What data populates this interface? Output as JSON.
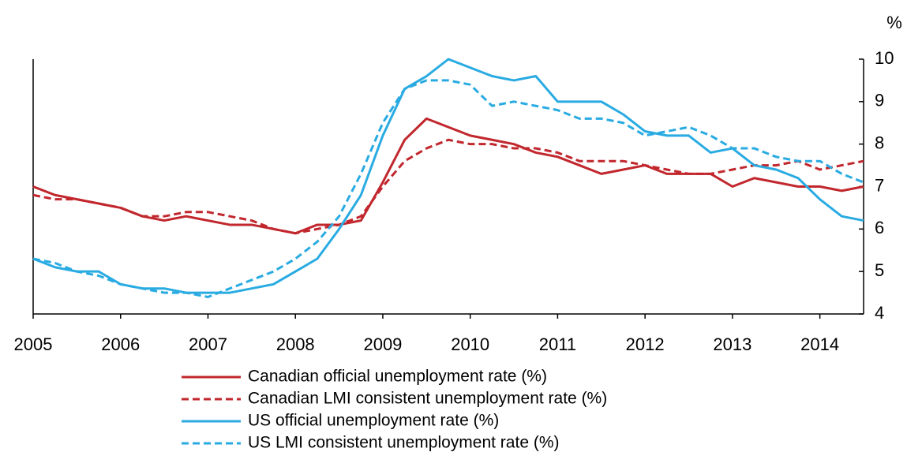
{
  "chart_data": {
    "type": "line",
    "y_unit": "%",
    "x": [
      2005,
      2005.25,
      2005.5,
      2005.75,
      2006,
      2006.25,
      2006.5,
      2006.75,
      2007,
      2007.25,
      2007.5,
      2007.75,
      2008,
      2008.25,
      2008.5,
      2008.75,
      2009,
      2009.25,
      2009.5,
      2009.75,
      2010,
      2010.25,
      2010.5,
      2010.75,
      2011,
      2011.25,
      2011.5,
      2011.75,
      2012,
      2012.25,
      2012.5,
      2012.75,
      2013,
      2013.25,
      2013.5,
      2013.75,
      2014,
      2014.25,
      2014.5
    ],
    "xlim": [
      2005,
      2014.5
    ],
    "xticks": [
      2005,
      2006,
      2007,
      2008,
      2009,
      2010,
      2011,
      2012,
      2013,
      2014
    ],
    "ylim": [
      4,
      10
    ],
    "yticks": [
      4,
      5,
      6,
      7,
      8,
      9,
      10
    ],
    "series": [
      {
        "name": "Canadian official unemployment rate (%)",
        "color": "#c1272d",
        "dash": false,
        "values": [
          7.0,
          6.8,
          6.7,
          6.6,
          6.5,
          6.3,
          6.2,
          6.3,
          6.2,
          6.1,
          6.1,
          6.0,
          5.9,
          6.1,
          6.1,
          6.2,
          7.1,
          8.1,
          8.6,
          8.4,
          8.2,
          8.1,
          8.0,
          7.8,
          7.7,
          7.5,
          7.3,
          7.4,
          7.5,
          7.3,
          7.3,
          7.3,
          7.0,
          7.2,
          7.1,
          7.0,
          7.0,
          6.9,
          7.0
        ]
      },
      {
        "name": "Canadian LMI consistent unemployment rate (%)",
        "color": "#c1272d",
        "dash": true,
        "values": [
          6.8,
          6.7,
          6.7,
          6.6,
          6.5,
          6.3,
          6.3,
          6.4,
          6.4,
          6.3,
          6.2,
          6.0,
          5.9,
          6.0,
          6.1,
          6.3,
          7.0,
          7.6,
          7.9,
          8.1,
          8.0,
          8.0,
          7.9,
          7.9,
          7.8,
          7.6,
          7.6,
          7.6,
          7.5,
          7.4,
          7.3,
          7.3,
          7.4,
          7.5,
          7.5,
          7.6,
          7.4,
          7.5,
          7.6
        ]
      },
      {
        "name": "US official unemployment rate (%)",
        "color": "#29abe2",
        "dash": false,
        "values": [
          5.3,
          5.1,
          5.0,
          5.0,
          4.7,
          4.6,
          4.6,
          4.5,
          4.5,
          4.5,
          4.6,
          4.7,
          5.0,
          5.3,
          6.0,
          6.8,
          8.2,
          9.3,
          9.6,
          10.0,
          9.8,
          9.6,
          9.5,
          9.6,
          9.0,
          9.0,
          9.0,
          8.7,
          8.3,
          8.2,
          8.2,
          7.8,
          7.9,
          7.5,
          7.4,
          7.2,
          6.7,
          6.3,
          6.2
        ]
      },
      {
        "name": "US LMI consistent unemployment rate (%)",
        "color": "#29abe2",
        "dash": true,
        "values": [
          5.3,
          5.2,
          5.0,
          4.9,
          4.7,
          4.6,
          4.5,
          4.5,
          4.4,
          4.6,
          4.8,
          5.0,
          5.3,
          5.7,
          6.3,
          7.3,
          8.5,
          9.3,
          9.5,
          9.5,
          9.4,
          8.9,
          9.0,
          8.9,
          8.8,
          8.6,
          8.6,
          8.5,
          8.2,
          8.3,
          8.4,
          8.2,
          7.9,
          7.9,
          7.7,
          7.6,
          7.6,
          7.3,
          7.1
        ]
      }
    ]
  }
}
